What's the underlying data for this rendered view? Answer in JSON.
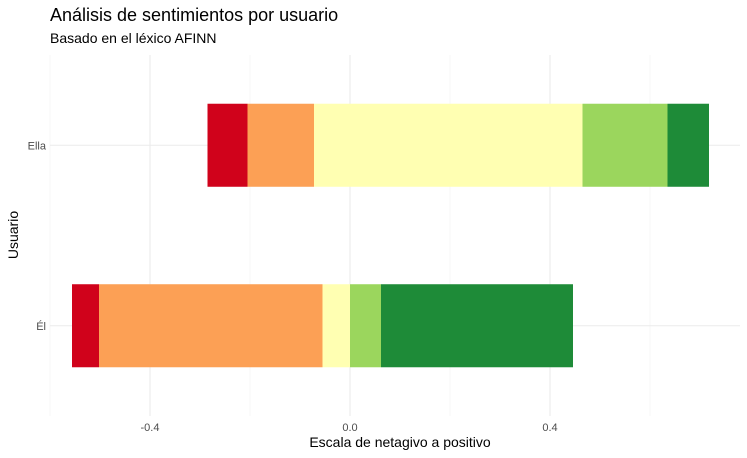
{
  "chart_data": {
    "type": "bar",
    "orientation": "horizontal",
    "stacked": true,
    "title": "Análisis de sentimientos por usuario",
    "subtitle": "Basado en el léxico AFINN",
    "xlabel": "Escala de netagivo a positivo",
    "ylabel": "Usuario",
    "xlim": [
      -0.6,
      0.78
    ],
    "x_ticks": [
      {
        "value": -0.4,
        "label": "-0.4"
      },
      {
        "value": 0.0,
        "label": "0.0"
      },
      {
        "value": 0.4,
        "label": "0.4"
      }
    ],
    "categories": [
      "Ella",
      "Él"
    ],
    "grid": true,
    "legend": "none",
    "segment_colors": [
      "#d7191c",
      "#fdae61",
      "#ffffbf",
      "#a6d96a",
      "#1a9641"
    ],
    "bars": [
      {
        "category": "Ella",
        "segments": [
          {
            "start": -0.285,
            "end": -0.205,
            "color": "#d0021b"
          },
          {
            "start": -0.205,
            "end": -0.072,
            "color": "#fca055"
          },
          {
            "start": -0.072,
            "end": 0.465,
            "color": "#ffffb2"
          },
          {
            "start": 0.465,
            "end": 0.635,
            "color": "#9bd65d"
          },
          {
            "start": 0.635,
            "end": 0.718,
            "color": "#1e8b38"
          }
        ]
      },
      {
        "category": "Él",
        "segments": [
          {
            "start": -0.556,
            "end": -0.502,
            "color": "#d0021b"
          },
          {
            "start": -0.502,
            "end": -0.055,
            "color": "#fca055"
          },
          {
            "start": -0.055,
            "end": 0.0,
            "color": "#ffffb2"
          },
          {
            "start": 0.0,
            "end": 0.062,
            "color": "#9bd65d"
          },
          {
            "start": 0.062,
            "end": 0.446,
            "color": "#1e8b38"
          }
        ]
      }
    ]
  }
}
